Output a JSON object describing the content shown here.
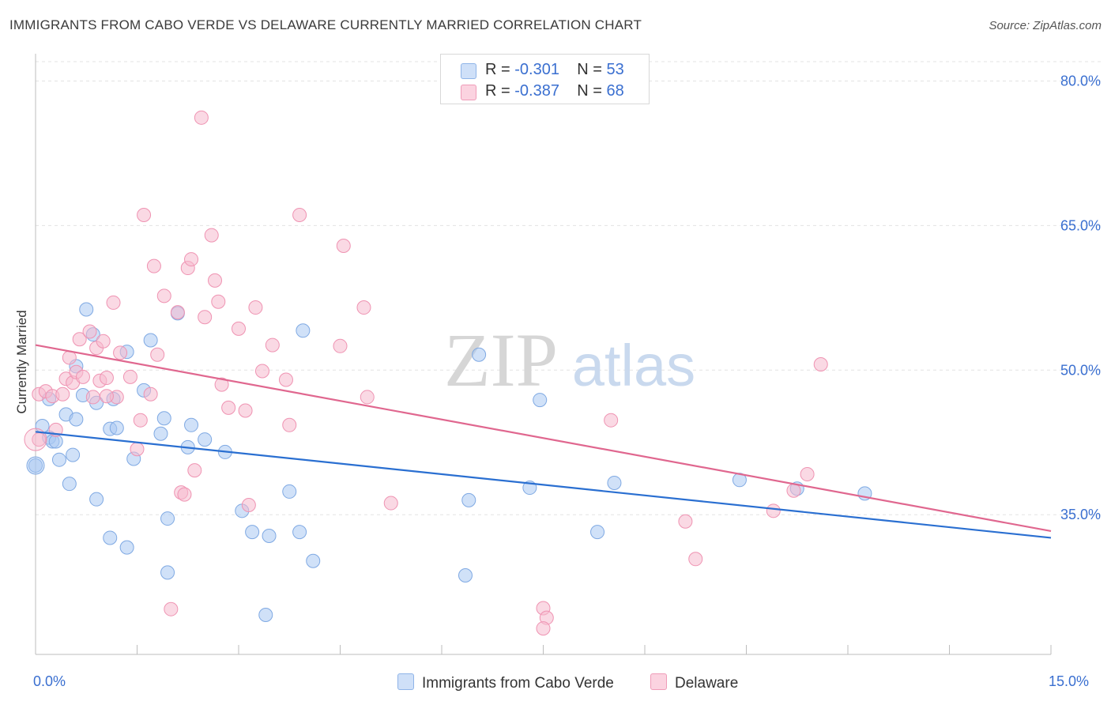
{
  "title": "IMMIGRANTS FROM CABO VERDE VS DELAWARE CURRENTLY MARRIED CORRELATION CHART",
  "source": "Source: ZipAtlas.com",
  "watermark": {
    "zip": "ZIP",
    "atlas": "atlas"
  },
  "legend_top": [
    {
      "r_label": "R =",
      "r_value": "-0.301",
      "n_label": "N =",
      "n_value": "53",
      "color": "#a9c8f2"
    },
    {
      "r_label": "R =",
      "r_value": "-0.387",
      "n_label": "N =",
      "n_value": "68",
      "color": "#f6b9cd"
    }
  ],
  "legend_bottom": [
    {
      "label": "Immigrants from Cabo Verde",
      "color": "#a9c8f2"
    },
    {
      "label": "Delaware",
      "color": "#f6b9cd"
    }
  ],
  "x_axis": {
    "min_label": "0.0%",
    "max_label": "15.0%"
  },
  "chart_data": {
    "type": "scatter",
    "title": "IMMIGRANTS FROM CABO VERDE VS DELAWARE CURRENTLY MARRIED CORRELATION CHART",
    "xlabel": "",
    "ylabel": "Currently Married",
    "xlim": [
      0,
      15
    ],
    "ylim": [
      20.5,
      82.5
    ],
    "y_ticks": [
      35,
      50,
      65,
      80
    ],
    "y_tick_labels": [
      "35.0%",
      "50.0%",
      "65.0%",
      "80.0%"
    ],
    "x_tick_labels": [
      "0.0%",
      "15.0%"
    ],
    "grid": true,
    "series": [
      {
        "name": "Immigrants from Cabo Verde",
        "color": "#a9c8f2",
        "stroke": "#7fa9e3",
        "line_color": "#2a6fd1",
        "trend": [
          [
            0,
            43.6
          ],
          [
            15,
            32.6
          ]
        ],
        "points": [
          [
            0.0,
            40.1
          ],
          [
            0.1,
            44.2
          ],
          [
            0.2,
            43.0
          ],
          [
            0.25,
            42.6
          ],
          [
            0.2,
            47.0
          ],
          [
            0.3,
            42.6
          ],
          [
            0.45,
            45.4
          ],
          [
            0.5,
            38.2
          ],
          [
            0.6,
            44.9
          ],
          [
            0.35,
            40.7
          ],
          [
            0.55,
            41.2
          ],
          [
            0.7,
            47.4
          ],
          [
            0.75,
            56.3
          ],
          [
            0.85,
            53.7
          ],
          [
            0.6,
            50.4
          ],
          [
            0.9,
            46.6
          ],
          [
            1.15,
            47.0
          ],
          [
            1.1,
            43.9
          ],
          [
            1.2,
            44.0
          ],
          [
            1.35,
            51.9
          ],
          [
            1.45,
            40.8
          ],
          [
            1.6,
            47.9
          ],
          [
            1.7,
            53.1
          ],
          [
            1.85,
            43.4
          ],
          [
            1.9,
            45.0
          ],
          [
            0.9,
            36.6
          ],
          [
            1.1,
            32.6
          ],
          [
            1.35,
            31.6
          ],
          [
            1.95,
            34.6
          ],
          [
            1.95,
            29.0
          ],
          [
            2.1,
            55.9
          ],
          [
            2.25,
            42.0
          ],
          [
            2.3,
            44.3
          ],
          [
            2.5,
            42.8
          ],
          [
            2.8,
            41.5
          ],
          [
            3.05,
            35.4
          ],
          [
            3.2,
            33.2
          ],
          [
            3.45,
            32.8
          ],
          [
            3.4,
            24.6
          ],
          [
            3.75,
            37.4
          ],
          [
            3.9,
            33.2
          ],
          [
            3.95,
            54.1
          ],
          [
            4.1,
            30.2
          ],
          [
            6.55,
            51.6
          ],
          [
            6.4,
            36.5
          ],
          [
            6.35,
            28.7
          ],
          [
            7.3,
            37.8
          ],
          [
            7.45,
            46.9
          ],
          [
            8.3,
            33.2
          ],
          [
            8.55,
            38.3
          ],
          [
            10.4,
            38.6
          ],
          [
            11.25,
            37.7
          ],
          [
            12.25,
            37.2
          ]
        ]
      },
      {
        "name": "Delaware",
        "color": "#f6b9cd",
        "stroke": "#ef93b2",
        "line_color": "#e0678f",
        "trend": [
          [
            0,
            52.6
          ],
          [
            15,
            33.3
          ]
        ],
        "points": [
          [
            0.05,
            42.8
          ],
          [
            0.05,
            47.5
          ],
          [
            0.15,
            47.8
          ],
          [
            0.3,
            43.8
          ],
          [
            0.25,
            47.3
          ],
          [
            0.4,
            47.5
          ],
          [
            0.45,
            49.1
          ],
          [
            0.5,
            51.3
          ],
          [
            0.55,
            48.7
          ],
          [
            0.6,
            49.8
          ],
          [
            0.65,
            53.2
          ],
          [
            0.7,
            49.3
          ],
          [
            0.8,
            54.0
          ],
          [
            0.85,
            47.2
          ],
          [
            0.9,
            52.3
          ],
          [
            0.95,
            48.9
          ],
          [
            1.0,
            53.0
          ],
          [
            1.05,
            49.2
          ],
          [
            1.15,
            57.0
          ],
          [
            1.2,
            47.2
          ],
          [
            1.25,
            51.8
          ],
          [
            1.4,
            49.3
          ],
          [
            1.5,
            41.8
          ],
          [
            1.55,
            44.8
          ],
          [
            1.6,
            66.1
          ],
          [
            1.7,
            47.5
          ],
          [
            1.75,
            60.8
          ],
          [
            1.8,
            51.6
          ],
          [
            1.9,
            57.7
          ],
          [
            2.0,
            25.2
          ],
          [
            2.1,
            56.0
          ],
          [
            2.15,
            37.3
          ],
          [
            2.2,
            37.1
          ],
          [
            2.25,
            60.6
          ],
          [
            2.3,
            61.5
          ],
          [
            2.35,
            39.6
          ],
          [
            2.45,
            76.2
          ],
          [
            2.5,
            55.5
          ],
          [
            2.6,
            64.0
          ],
          [
            2.65,
            59.3
          ],
          [
            2.7,
            57.1
          ],
          [
            2.75,
            48.5
          ],
          [
            2.85,
            46.1
          ],
          [
            3.0,
            54.3
          ],
          [
            3.1,
            45.8
          ],
          [
            3.15,
            36.0
          ],
          [
            3.25,
            56.5
          ],
          [
            3.35,
            49.9
          ],
          [
            3.5,
            52.6
          ],
          [
            3.7,
            49.0
          ],
          [
            3.75,
            44.3
          ],
          [
            3.9,
            66.1
          ],
          [
            4.5,
            52.5
          ],
          [
            4.55,
            62.9
          ],
          [
            4.85,
            56.5
          ],
          [
            4.9,
            47.2
          ],
          [
            5.25,
            36.2
          ],
          [
            7.5,
            25.3
          ],
          [
            7.55,
            24.3
          ],
          [
            8.5,
            44.8
          ],
          [
            9.6,
            34.3
          ],
          [
            9.75,
            30.4
          ],
          [
            10.9,
            35.4
          ],
          [
            11.2,
            37.5
          ],
          [
            11.4,
            39.2
          ],
          [
            11.6,
            50.6
          ],
          [
            7.5,
            23.2
          ],
          [
            1.05,
            47.3
          ]
        ]
      }
    ]
  }
}
